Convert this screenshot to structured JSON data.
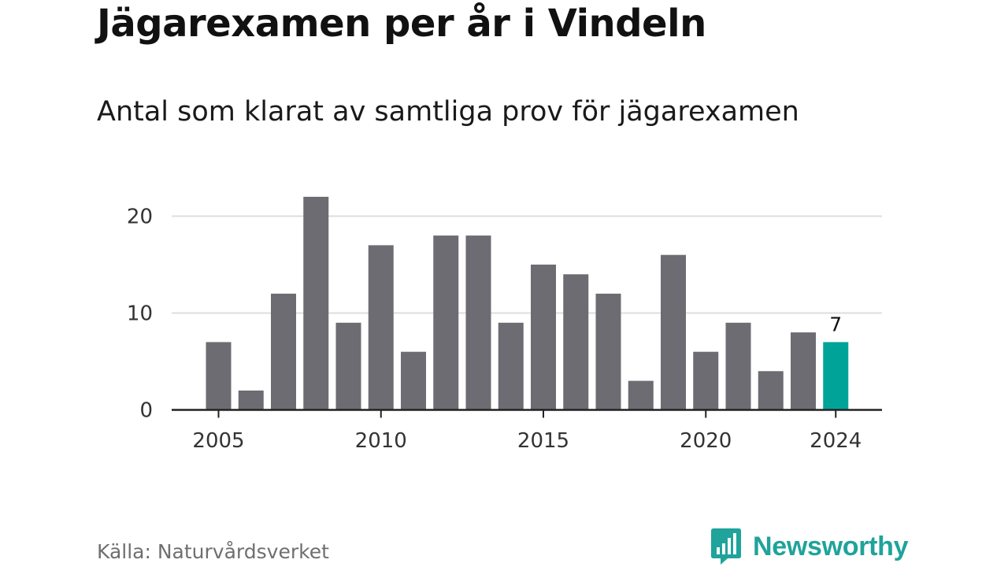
{
  "chart_data": {
    "type": "bar",
    "title": "Jägarexamen per år i Vindeln",
    "subtitle": "Antal som klarat av samtliga prov för jägarexamen",
    "xlabel": "",
    "ylabel": "",
    "categories": [
      2005,
      2006,
      2007,
      2008,
      2009,
      2010,
      2011,
      2012,
      2013,
      2014,
      2015,
      2016,
      2017,
      2018,
      2019,
      2020,
      2021,
      2022,
      2023,
      2024
    ],
    "values": [
      7,
      2,
      12,
      22,
      9,
      17,
      6,
      18,
      18,
      9,
      15,
      14,
      12,
      3,
      16,
      6,
      9,
      4,
      8,
      7
    ],
    "ylim": [
      0,
      25
    ],
    "yticks": [
      0,
      10,
      20
    ],
    "xticks": [
      2005,
      2010,
      2015,
      2020,
      2024
    ],
    "highlight": {
      "category": 2024,
      "label": "7"
    },
    "grid": "horizontal",
    "legend": "none",
    "colors": {
      "bar": "#6d6c72",
      "highlight": "#00a398",
      "grid": "#dedede",
      "axis": "#222222"
    }
  },
  "source": "Källa: Naturvårdsverket",
  "brand": {
    "name": "Newsworthy",
    "icon": "newsworthy-logo-icon",
    "color": "#1fa39a"
  }
}
